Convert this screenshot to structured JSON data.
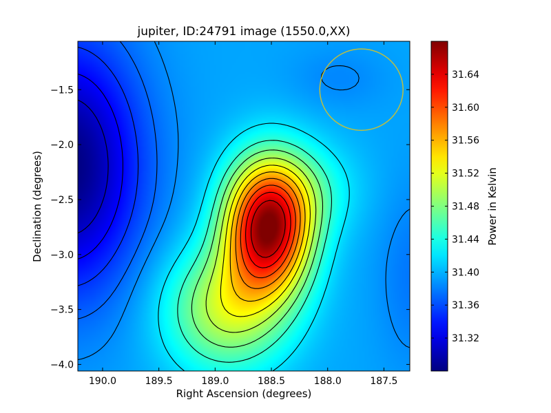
{
  "chart_data": {
    "type": "heatmap",
    "title": "jupiter, ID:24791 image (1550.0,XX)",
    "xlabel": "Right Ascension (degrees)",
    "ylabel": "Declination (degrees)",
    "xlim": [
      190.22,
      187.27
    ],
    "ylim": [
      -4.06,
      -1.06
    ],
    "x_ticks": [
      190.0,
      189.5,
      189.0,
      188.5,
      188.0,
      187.5
    ],
    "x_tick_labels": [
      "190.0",
      "189.5",
      "189.0",
      "188.5",
      "188.0",
      "187.5"
    ],
    "y_ticks": [
      -1.5,
      -2.0,
      -2.5,
      -3.0,
      -3.5,
      -4.0
    ],
    "y_tick_labels": [
      "−1.5",
      "−2.0",
      "−2.5",
      "−3.0",
      "−3.5",
      "−4.0"
    ],
    "colorbar": {
      "label": "Power in Kelvin",
      "range": [
        31.28,
        31.68
      ],
      "ticks": [
        31.32,
        31.36,
        31.4,
        31.44,
        31.48,
        31.52,
        31.56,
        31.6,
        31.64
      ],
      "tick_labels": [
        "31.32",
        "31.36",
        "31.40",
        "31.44",
        "31.48",
        "31.52",
        "31.56",
        "31.60",
        "31.64"
      ],
      "colormap": "jet"
    },
    "field": {
      "base": 31.395,
      "components": [
        {
          "ra": 188.53,
          "dec": -2.75,
          "sx": 0.27,
          "sy": 0.42,
          "amp": 0.27
        },
        {
          "ra": 188.9,
          "dec": -3.5,
          "sx": 0.38,
          "sy": 0.4,
          "amp": 0.11
        },
        {
          "ra": 188.2,
          "dec": -2.4,
          "sx": 0.33,
          "sy": 0.3,
          "amp": 0.04
        },
        {
          "ra": 190.3,
          "dec": -2.2,
          "sx": 0.45,
          "sy": 0.8,
          "amp": -0.115
        },
        {
          "ra": 187.25,
          "dec": -3.2,
          "sx": 0.22,
          "sy": 0.6,
          "amp": -0.018
        },
        {
          "ra": 187.9,
          "dec": -1.4,
          "sx": 0.3,
          "sy": 0.2,
          "amp": -0.012
        }
      ],
      "contour_levels": [
        31.31,
        31.33,
        31.35,
        31.37,
        31.385,
        31.42,
        31.45,
        31.475,
        31.5,
        31.525,
        31.55,
        31.575,
        31.6,
        31.625,
        31.65
      ]
    },
    "annotations": [
      {
        "type": "circle",
        "ra": 187.7,
        "dec": -1.5,
        "radius_deg": 0.37,
        "color": "#bfbf3f"
      }
    ],
    "grid": false,
    "legend": "none"
  }
}
